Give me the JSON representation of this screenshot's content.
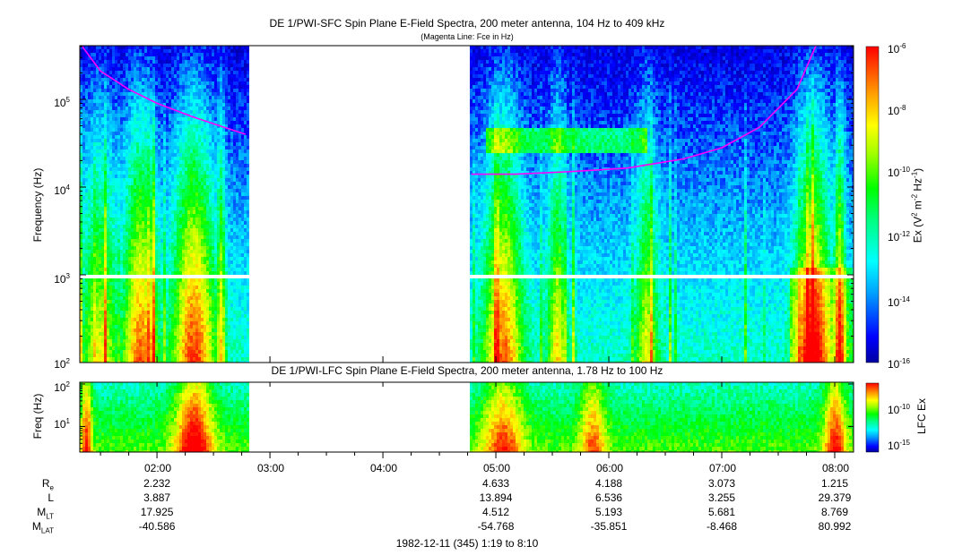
{
  "chart_data": [
    {
      "type": "heatmap",
      "title": "DE 1/PWI-SFC  Spin Plane E-Field Spectra, 200 meter antenna, 104 Hz to 409 kHz",
      "subtitle": "(Magenta Line: Fce in Hz)",
      "ylabel": "Frequency (Hz)",
      "yscale": "log",
      "ylim": [
        100,
        409000
      ],
      "y_ticks": [
        "10^2",
        "10^3",
        "10^4",
        "10^5"
      ],
      "colorbar_label": "Ex (V^2 m^-2 Hz^-1)",
      "colorbar_ticks": [
        "10^-6",
        "10^-8",
        "10^-10",
        "10^-12",
        "10^-14",
        "10^-16"
      ],
      "colorscale": [
        "#0000a0",
        "#0000ff",
        "#00a0ff",
        "#00ffff",
        "#00ff80",
        "#00ff00",
        "#a0ff00",
        "#ffff00",
        "#ffa000",
        "#ff4000",
        "#ff0000"
      ],
      "data_gap": [
        "02:48",
        "04:46"
      ],
      "series": [
        {
          "name": "Fce",
          "color": "#ff00ff",
          "x": [
            "01:20",
            "01:30",
            "01:45",
            "02:00",
            "02:20",
            "02:47",
            "04:47",
            "05:10",
            "05:40",
            "06:10",
            "06:40",
            "07:00",
            "07:20",
            "07:40",
            "07:50"
          ],
          "y": [
            409000,
            210000,
            130000,
            90000,
            62000,
            40000,
            14000,
            14000,
            15000,
            16500,
            21000,
            28000,
            48000,
            130000,
            409000
          ]
        }
      ]
    },
    {
      "type": "heatmap",
      "title": "DE 1/PWI-LFC  Spin Plane E-Field Spectra, 200 meter antenna, 1.78 Hz to 100 Hz",
      "ylabel": "Freq (Hz)",
      "yscale": "log",
      "ylim": [
        2.5,
        110
      ],
      "y_ticks": [
        "10^1",
        "10^2"
      ],
      "colorbar_label": "LFC Ex",
      "colorbar_ticks": [
        "10^-10",
        "10^-15"
      ],
      "data_gap": [
        "02:48",
        "04:46"
      ]
    }
  ],
  "x_axis": {
    "ticks": [
      "02:00",
      "03:00",
      "04:00",
      "05:00",
      "06:00",
      "07:00",
      "08:00"
    ],
    "footer": "1982-12-11 (345) 1:19 to 8:10"
  },
  "ephemeris": {
    "rows": [
      {
        "label": "R",
        "sub": "e",
        "values": [
          "2.232",
          "",
          "",
          "4.633",
          "4.188",
          "3.073",
          "1.215"
        ]
      },
      {
        "label": "L",
        "sub": "",
        "values": [
          "3.887",
          "",
          "",
          "13.894",
          "6.536",
          "3.255",
          "29.379"
        ]
      },
      {
        "label": "M",
        "sub": "LT",
        "values": [
          "17.925",
          "",
          "",
          "4.512",
          "5.193",
          "5.681",
          "8.769"
        ]
      },
      {
        "label": "M",
        "sub": "LAT",
        "values": [
          "-40.586",
          "",
          "",
          "-54.768",
          "-35.851",
          "-8.468",
          "80.992"
        ]
      }
    ]
  }
}
